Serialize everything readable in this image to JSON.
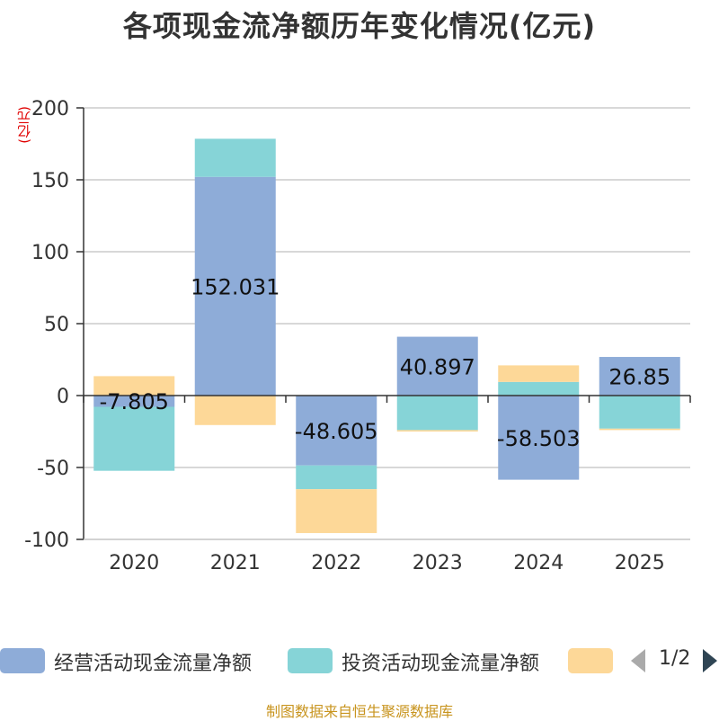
{
  "title": "各项现金流净额历年变化情况(亿元)",
  "unit_label": "(亿元)",
  "footer": "制图数据来自恒生聚源数据库",
  "legend": {
    "items": [
      {
        "label": "经营活动现金流量净额",
        "color": "#8eacd8"
      },
      {
        "label": "投资活动现金流量净额",
        "color": "#86d4d7"
      },
      {
        "label": "",
        "color": "#fdd898"
      }
    ],
    "page": "1/2"
  },
  "chart_data": {
    "type": "bar",
    "stacked": true,
    "title": "各项现金流净额历年变化情况(亿元)",
    "ylabel": "(亿元)",
    "ylim": [
      -100,
      200
    ],
    "yticks": [
      200,
      150,
      100,
      50,
      0,
      -50,
      -100
    ],
    "categories": [
      "2020",
      "2021",
      "2022",
      "2023",
      "2024",
      "2025"
    ],
    "series": [
      {
        "name": "经营活动现金流量净额",
        "color": "#8eacd8",
        "values": [
          -7.805,
          152.031,
          -48.605,
          40.897,
          -58.503,
          26.85
        ],
        "labels": [
          "-7.805",
          "152.031",
          "-48.605",
          "40.897",
          "-58.503",
          "26.85"
        ]
      },
      {
        "name": "投资活动现金流量净额",
        "color": "#86d4d7",
        "values": [
          -44.5,
          26.5,
          -16.5,
          -24,
          9.5,
          -23
        ]
      },
      {
        "name": "",
        "color": "#fdd898",
        "values": [
          13.5,
          -20.5,
          -30.5,
          -1,
          11.5,
          -1
        ]
      }
    ]
  }
}
